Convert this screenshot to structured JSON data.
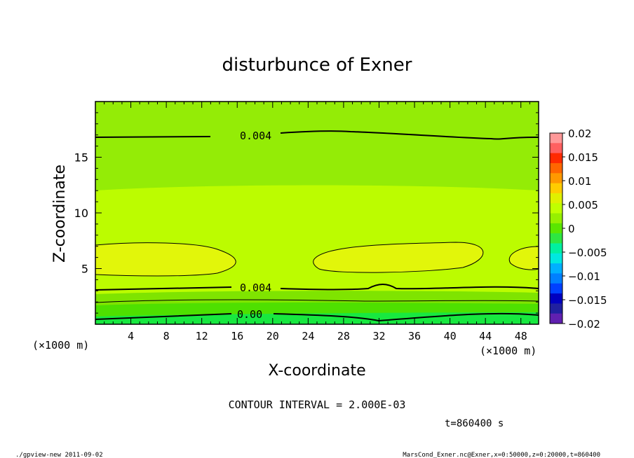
{
  "chart_data": {
    "type": "heatmap",
    "title": "disturbunce of Exner",
    "xlabel": "X-coordinate",
    "ylabel": "Z-coordinate",
    "x_unit": "(×1000 m)",
    "x_unit_right": "(×1000 m)",
    "xlim": [
      0,
      50
    ],
    "ylim": [
      0,
      20
    ],
    "x_ticks": [
      "4",
      "8",
      "12",
      "16",
      "20",
      "24",
      "28",
      "32",
      "36",
      "40",
      "44",
      "48"
    ],
    "y_ticks": [
      "5",
      "10",
      "15"
    ],
    "contour_labels": [
      "0.004",
      "0.004",
      "0.00"
    ],
    "colorbar": {
      "ticks": [
        "0.02",
        "0.015",
        "0.01",
        "0.005",
        "0",
        "−0.005",
        "−0.01",
        "−0.015",
        "−0.02"
      ],
      "colors": [
        "#ff9999",
        "#ff6060",
        "#ff2a00",
        "#ff6600",
        "#ff9900",
        "#ffcc00",
        "#e0f000",
        "#c0ff00",
        "#96f000",
        "#5ae600",
        "#2ee642",
        "#00f0a0",
        "#00e8e0",
        "#00b0ff",
        "#0080ff",
        "#0040ff",
        "#0000c0",
        "#2020a0",
        "#6020b0"
      ]
    },
    "contour_interval": "CONTOUR INTERVAL = 2.000E-03",
    "time": "t=860400 s"
  },
  "footer": {
    "left": "./gpview-new   2011-09-02",
    "right": "MarsCond_Exner.nc@Exner,x=0:50000,z=0:20000,t=860400"
  }
}
